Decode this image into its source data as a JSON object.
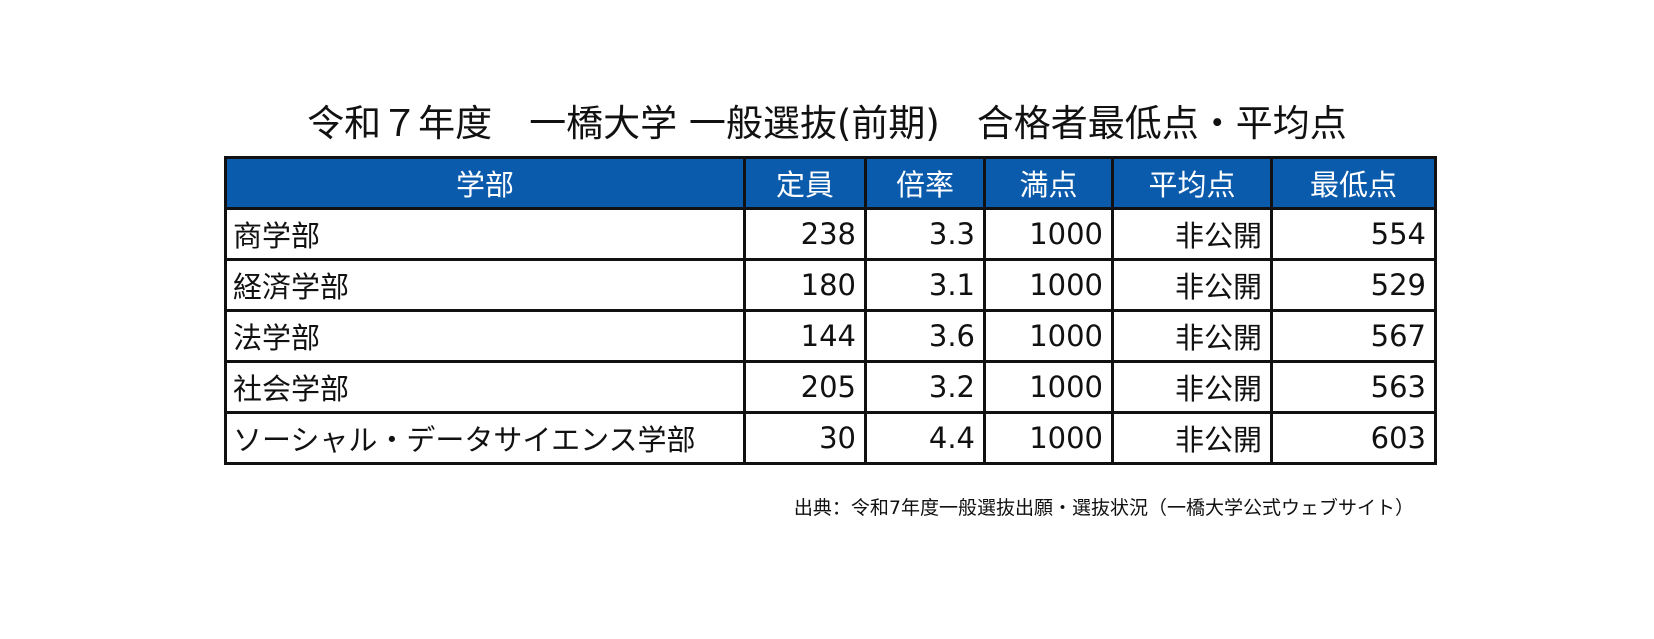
{
  "title": "令和７年度　一橋大学 一般選抜(前期)　合格者最低点・平均点",
  "accent_color": "#0b5bad",
  "columns": [
    "学部",
    "定員",
    "倍率",
    "満点",
    "平均点",
    "最低点"
  ],
  "rows": [
    {
      "faculty": "商学部",
      "capacity": "238",
      "ratio": "3.3",
      "full_score": "1000",
      "average": "非公開",
      "minimum": "554"
    },
    {
      "faculty": "経済学部",
      "capacity": "180",
      "ratio": "3.1",
      "full_score": "1000",
      "average": "非公開",
      "minimum": "529"
    },
    {
      "faculty": "法学部",
      "capacity": "144",
      "ratio": "3.6",
      "full_score": "1000",
      "average": "非公開",
      "minimum": "567"
    },
    {
      "faculty": "社会学部",
      "capacity": "205",
      "ratio": "3.2",
      "full_score": "1000",
      "average": "非公開",
      "minimum": "563"
    },
    {
      "faculty": "ソーシャル・データサイエンス学部",
      "capacity": "30",
      "ratio": "4.4",
      "full_score": "1000",
      "average": "非公開",
      "minimum": "603"
    }
  ],
  "source": "出典：令和7年度一般選抜出願・選抜状況（一橋大学公式ウェブサイト）"
}
